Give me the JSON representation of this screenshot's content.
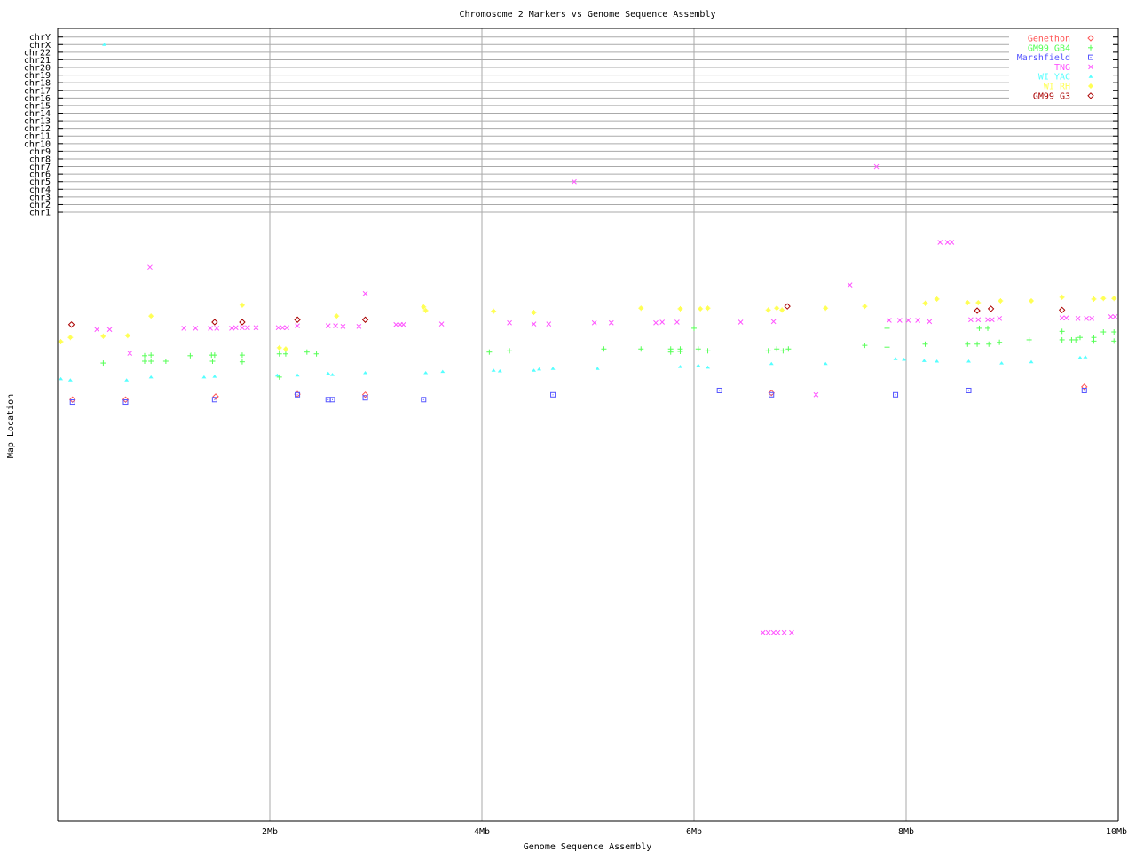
{
  "chart_data": {
    "type": "scatter",
    "title": "Chromosome 2 Markers vs Genome Sequence Assembly",
    "xlabel": "Genome Sequence Assembly",
    "ylabel": "Map Location",
    "xlim": [
      0,
      10
    ],
    "x_ticks": [
      {
        "value": 2,
        "label": "2Mb"
      },
      {
        "value": 4,
        "label": "4Mb"
      },
      {
        "value": 6,
        "label": "6Mb"
      },
      {
        "value": 8,
        "label": "8Mb"
      },
      {
        "value": 10,
        "label": "10Mb"
      }
    ],
    "ylim": [
      0,
      100
    ],
    "grid": "vertical at x ticks",
    "legend_position": "top-right",
    "other_chromosomes": [
      "chrY",
      "chrX",
      "chr22",
      "chr21",
      "chr20",
      "chr19",
      "chr18",
      "chr17",
      "chr16",
      "chr15",
      "chr14",
      "chr13",
      "chr12",
      "chr11",
      "chr10",
      "chr9",
      "chr8",
      "chr7",
      "chr6",
      "chr5",
      "chr4",
      "chr3",
      "chr2",
      "chr1"
    ],
    "series": [
      {
        "name": "Genethon",
        "color": "#ff5555",
        "marker": "diamond",
        "points": [
          [
            0.14,
            69.1
          ],
          [
            0.64,
            69.1
          ],
          [
            1.49,
            69.6
          ],
          [
            2.26,
            70.0
          ],
          [
            2.9,
            69.9
          ],
          [
            6.73,
            70.2
          ],
          [
            9.68,
            71.2
          ]
        ],
        "other_chromosome_hits": []
      },
      {
        "name": "GM99 GB4",
        "color": "#55ff55",
        "marker": "plus",
        "points": [
          [
            0.43,
            75.1
          ],
          [
            0.82,
            76.3
          ],
          [
            0.88,
            76.4
          ],
          [
            0.82,
            75.4
          ],
          [
            0.88,
            75.4
          ],
          [
            1.02,
            75.4
          ],
          [
            1.25,
            76.3
          ],
          [
            1.45,
            76.4
          ],
          [
            1.48,
            76.4
          ],
          [
            1.46,
            75.4
          ],
          [
            1.74,
            76.4
          ],
          [
            1.74,
            75.3
          ],
          [
            2.09,
            76.6
          ],
          [
            2.15,
            76.6
          ],
          [
            2.09,
            72.8
          ],
          [
            2.35,
            76.9
          ],
          [
            2.44,
            76.6
          ],
          [
            4.07,
            76.9
          ],
          [
            4.26,
            77.1
          ],
          [
            5.15,
            77.4
          ],
          [
            5.5,
            77.4
          ],
          [
            5.78,
            77.4
          ],
          [
            5.78,
            76.9
          ],
          [
            5.87,
            77.4
          ],
          [
            5.87,
            77.0
          ],
          [
            6.0,
            80.8
          ],
          [
            6.04,
            77.4
          ],
          [
            6.13,
            77.1
          ],
          [
            6.7,
            77.1
          ],
          [
            6.78,
            77.4
          ],
          [
            6.84,
            77.1
          ],
          [
            6.89,
            77.4
          ],
          [
            7.61,
            78.0
          ],
          [
            7.82,
            80.8
          ],
          [
            7.82,
            77.7
          ],
          [
            8.18,
            78.2
          ],
          [
            8.58,
            78.2
          ],
          [
            8.67,
            78.2
          ],
          [
            8.69,
            80.8
          ],
          [
            8.77,
            80.8
          ],
          [
            8.78,
            78.2
          ],
          [
            8.88,
            78.5
          ],
          [
            9.16,
            78.9
          ],
          [
            9.47,
            80.3
          ],
          [
            9.47,
            78.9
          ],
          [
            9.56,
            78.9
          ],
          [
            9.6,
            78.9
          ],
          [
            9.64,
            79.3
          ],
          [
            9.77,
            79.3
          ],
          [
            9.77,
            78.7
          ],
          [
            9.86,
            80.2
          ],
          [
            9.96,
            80.2
          ],
          [
            9.96,
            78.7
          ]
        ],
        "other_chromosome_hits": []
      },
      {
        "name": "Marshfield",
        "color": "#5555ff",
        "marker": "square",
        "points": [
          [
            0.14,
            68.7
          ],
          [
            0.64,
            68.7
          ],
          [
            1.48,
            69.1
          ],
          [
            2.26,
            69.9
          ],
          [
            2.55,
            69.1
          ],
          [
            2.59,
            69.1
          ],
          [
            2.9,
            69.4
          ],
          [
            3.45,
            69.1
          ],
          [
            4.67,
            69.9
          ],
          [
            6.24,
            70.6
          ],
          [
            6.73,
            69.9
          ],
          [
            7.9,
            69.9
          ],
          [
            8.59,
            70.6
          ],
          [
            9.68,
            70.6
          ]
        ],
        "other_chromosome_hits": []
      },
      {
        "name": "TNG",
        "color": "#ff55ff",
        "marker": "cross",
        "points": [
          [
            0.87,
            90.8
          ],
          [
            2.9,
            86.5
          ],
          [
            0.37,
            80.6
          ],
          [
            0.49,
            80.6
          ],
          [
            0.68,
            76.7
          ],
          [
            1.19,
            80.8
          ],
          [
            1.3,
            80.8
          ],
          [
            1.44,
            80.8
          ],
          [
            1.5,
            80.8
          ],
          [
            1.64,
            80.8
          ],
          [
            1.68,
            80.9
          ],
          [
            1.74,
            80.9
          ],
          [
            1.79,
            80.9
          ],
          [
            1.87,
            80.9
          ],
          [
            2.08,
            80.9
          ],
          [
            2.12,
            80.9
          ],
          [
            2.16,
            80.9
          ],
          [
            2.26,
            81.2
          ],
          [
            2.55,
            81.2
          ],
          [
            2.62,
            81.2
          ],
          [
            2.69,
            81.1
          ],
          [
            2.84,
            81.1
          ],
          [
            3.19,
            81.4
          ],
          [
            3.23,
            81.4
          ],
          [
            3.26,
            81.4
          ],
          [
            3.62,
            81.5
          ],
          [
            4.26,
            81.7
          ],
          [
            4.49,
            81.5
          ],
          [
            4.63,
            81.5
          ],
          [
            5.06,
            81.7
          ],
          [
            5.22,
            81.7
          ],
          [
            5.64,
            81.7
          ],
          [
            5.7,
            81.8
          ],
          [
            5.84,
            81.8
          ],
          [
            6.44,
            81.8
          ],
          [
            6.75,
            81.9
          ],
          [
            7.15,
            69.9
          ],
          [
            8.32,
            94.9
          ],
          [
            8.39,
            94.9
          ],
          [
            8.43,
            94.9
          ],
          [
            7.47,
            87.9
          ],
          [
            7.84,
            82.1
          ],
          [
            7.94,
            82.1
          ],
          [
            8.02,
            82.1
          ],
          [
            8.11,
            82.1
          ],
          [
            8.22,
            81.9
          ],
          [
            8.61,
            82.2
          ],
          [
            8.68,
            82.2
          ],
          [
            8.77,
            82.2
          ],
          [
            8.81,
            82.2
          ],
          [
            8.88,
            82.4
          ],
          [
            9.47,
            82.5
          ],
          [
            9.51,
            82.5
          ],
          [
            9.62,
            82.4
          ],
          [
            9.7,
            82.4
          ],
          [
            9.75,
            82.4
          ],
          [
            9.93,
            82.7
          ],
          [
            9.97,
            82.7
          ],
          [
            6.65,
            30.9
          ],
          [
            6.7,
            30.9
          ],
          [
            6.75,
            30.9
          ],
          [
            6.79,
            30.9
          ],
          [
            6.85,
            30.9
          ],
          [
            6.92,
            30.9
          ]
        ],
        "other_chromosome_hits": [
          {
            "chr": "chr5",
            "x": 4.87
          },
          {
            "chr": "chr7",
            "x": 7.72
          }
        ]
      },
      {
        "name": "WI YAC",
        "color": "#55ffff",
        "marker": "triangle",
        "points": [
          [
            0.03,
            72.5
          ],
          [
            0.12,
            72.3
          ],
          [
            0.65,
            72.3
          ],
          [
            0.88,
            72.8
          ],
          [
            1.38,
            72.8
          ],
          [
            1.48,
            72.9
          ],
          [
            2.07,
            73.1
          ],
          [
            2.26,
            73.1
          ],
          [
            2.55,
            73.4
          ],
          [
            2.59,
            73.2
          ],
          [
            2.9,
            73.5
          ],
          [
            3.47,
            73.5
          ],
          [
            3.63,
            73.7
          ],
          [
            4.11,
            73.9
          ],
          [
            4.17,
            73.8
          ],
          [
            4.49,
            73.9
          ],
          [
            4.54,
            74.1
          ],
          [
            4.67,
            74.2
          ],
          [
            5.09,
            74.2
          ],
          [
            5.87,
            74.5
          ],
          [
            6.04,
            74.7
          ],
          [
            6.13,
            74.4
          ],
          [
            6.73,
            75.0
          ],
          [
            7.24,
            75.0
          ],
          [
            7.9,
            75.8
          ],
          [
            7.98,
            75.7
          ],
          [
            8.17,
            75.5
          ],
          [
            8.29,
            75.4
          ],
          [
            8.59,
            75.4
          ],
          [
            8.9,
            75.1
          ],
          [
            9.18,
            75.3
          ],
          [
            9.64,
            76.0
          ],
          [
            9.69,
            76.1
          ]
        ],
        "other_chromosome_hits": [
          {
            "chr": "chrX",
            "x": 0.44
          }
        ]
      },
      {
        "name": "WI RH",
        "color": "#ffff55",
        "marker": "star",
        "points": [
          [
            0.03,
            78.6
          ],
          [
            0.12,
            79.3
          ],
          [
            0.43,
            79.5
          ],
          [
            0.66,
            79.6
          ],
          [
            0.88,
            82.8
          ],
          [
            1.74,
            84.6
          ],
          [
            2.09,
            77.6
          ],
          [
            2.15,
            77.4
          ],
          [
            2.63,
            82.8
          ],
          [
            3.45,
            84.3
          ],
          [
            3.47,
            83.7
          ],
          [
            4.11,
            83.6
          ],
          [
            4.49,
            83.4
          ],
          [
            5.5,
            84.1
          ],
          [
            5.87,
            84.0
          ],
          [
            6.06,
            84.0
          ],
          [
            6.13,
            84.1
          ],
          [
            6.7,
            83.8
          ],
          [
            6.78,
            84.1
          ],
          [
            6.83,
            83.8
          ],
          [
            7.24,
            84.1
          ],
          [
            7.61,
            84.4
          ],
          [
            8.18,
            84.9
          ],
          [
            8.29,
            85.6
          ],
          [
            8.58,
            85.0
          ],
          [
            8.68,
            85.0
          ],
          [
            8.89,
            85.3
          ],
          [
            9.18,
            85.3
          ],
          [
            9.47,
            85.9
          ],
          [
            9.77,
            85.6
          ],
          [
            9.86,
            85.7
          ],
          [
            9.96,
            85.7
          ]
        ],
        "other_chromosome_hits": []
      },
      {
        "name": "GM99 G3",
        "color": "#aa0000",
        "marker": "diamond",
        "points": [
          [
            0.13,
            81.4
          ],
          [
            1.48,
            81.8
          ],
          [
            1.74,
            81.8
          ],
          [
            2.26,
            82.2
          ],
          [
            2.9,
            82.2
          ],
          [
            6.88,
            84.4
          ],
          [
            8.67,
            83.7
          ],
          [
            8.8,
            84.0
          ],
          [
            9.47,
            83.8
          ]
        ],
        "other_chromosome_hits": []
      }
    ]
  }
}
